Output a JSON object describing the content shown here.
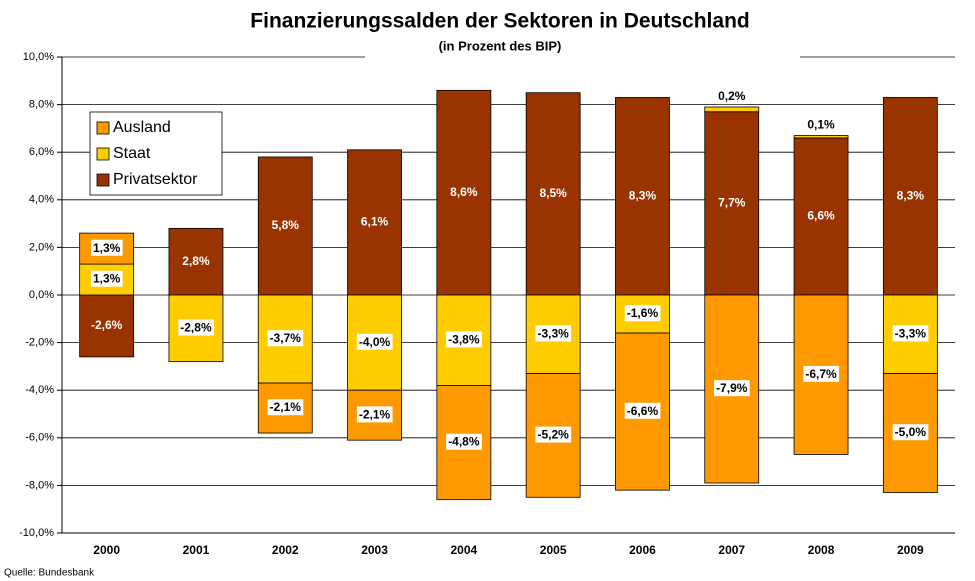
{
  "chart_data": {
    "type": "stacked_bar",
    "title": "Finanzierungssalden der Sektoren in Deutschland",
    "subtitle": "(in Prozent des BIP)",
    "source": "Quelle: Bundesbank",
    "categories": [
      "2000",
      "2001",
      "2002",
      "2003",
      "2004",
      "2005",
      "2006",
      "2007",
      "2008",
      "2009"
    ],
    "series": [
      {
        "name": "Ausland",
        "color": "#ff9900",
        "values": [
          1.3,
          null,
          -2.1,
          -2.1,
          -4.8,
          -5.2,
          -6.6,
          -7.9,
          -6.7,
          -5.0
        ],
        "value_labels": [
          "1,3%",
          null,
          "-2,1%",
          "-2,1%",
          "-4,8%",
          "-5,2%",
          "-6,6%",
          "-7,9%",
          "-6,7%",
          "-5,0%"
        ]
      },
      {
        "name": "Staat",
        "color": "#ffcc00",
        "values": [
          1.3,
          -2.8,
          -3.7,
          -4.0,
          -3.8,
          -3.3,
          -1.6,
          0.2,
          0.1,
          -3.3
        ],
        "value_labels": [
          "1,3%",
          "-2,8%",
          "-3,7%",
          "-4,0%",
          "-3,8%",
          "-3,3%",
          "-1,6%",
          "0,2%",
          "0,1%",
          "-3,3%"
        ]
      },
      {
        "name": "Privatsektor",
        "color": "#993300",
        "values": [
          -2.6,
          2.8,
          5.8,
          6.1,
          8.6,
          8.5,
          8.3,
          7.7,
          6.6,
          8.3
        ],
        "value_labels": [
          "-2,6%",
          "2,8%",
          "5,8%",
          "6,1%",
          "8,6%",
          "8,5%",
          "8,3%",
          "7,7%",
          "6,6%",
          "8,3%"
        ]
      }
    ],
    "ylim": [
      -10,
      10
    ],
    "yticks": [
      {
        "value": -10,
        "label": "-10,0%"
      },
      {
        "value": -8,
        "label": "-8,0%"
      },
      {
        "value": -6,
        "label": "-6,0%"
      },
      {
        "value": -4,
        "label": "-4,0%"
      },
      {
        "value": -2,
        "label": "-2,0%"
      },
      {
        "value": 0,
        "label": "0,0%"
      },
      {
        "value": 2,
        "label": "2,0%"
      },
      {
        "value": 4,
        "label": "4,0%"
      },
      {
        "value": 6,
        "label": "6,0%"
      },
      {
        "value": 8,
        "label": "8,0%"
      },
      {
        "value": 10,
        "label": "10,0%"
      }
    ],
    "grid": true,
    "legend": "upper left"
  }
}
